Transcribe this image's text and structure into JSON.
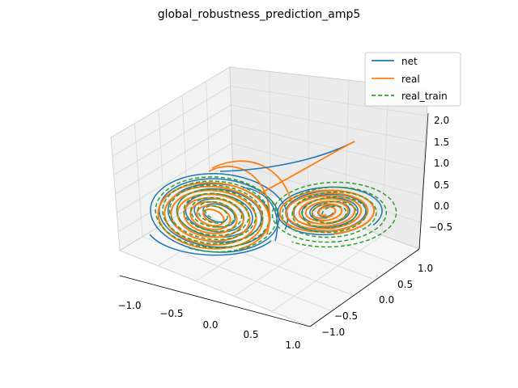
{
  "chart_data": {
    "type": "line",
    "projection": "3d",
    "title": "global_robustness_prediction_amp5",
    "xlabel": "",
    "ylabel": "",
    "zlabel": "",
    "xlim": [
      -1.2,
      1.2
    ],
    "ylim": [
      -1.2,
      1.2
    ],
    "zlim": [
      -0.8,
      2.2
    ],
    "x_ticks": [
      "−1.0",
      "−0.5",
      "0.0",
      "0.5",
      "1.0"
    ],
    "y_ticks": [
      "−1.0",
      "−0.5",
      "0.0",
      "0.5",
      "1.0"
    ],
    "z_ticks": [
      "−0.5",
      "0.0",
      "0.5",
      "1.0",
      "1.5",
      "2.0"
    ],
    "grid": true,
    "legend_position": "top-right",
    "series": [
      {
        "name": "net",
        "color": "#1f77b4",
        "style": "solid",
        "description_points": {
          "start": [
            1.0,
            0.0,
            1.6
          ]
        }
      },
      {
        "name": "real",
        "color": "#ff7f0e",
        "style": "solid",
        "description_points": {
          "start": [
            1.0,
            0.0,
            1.6
          ]
        }
      },
      {
        "name": "real_train",
        "color": "#2ca02c",
        "style": "dashed"
      }
    ]
  }
}
